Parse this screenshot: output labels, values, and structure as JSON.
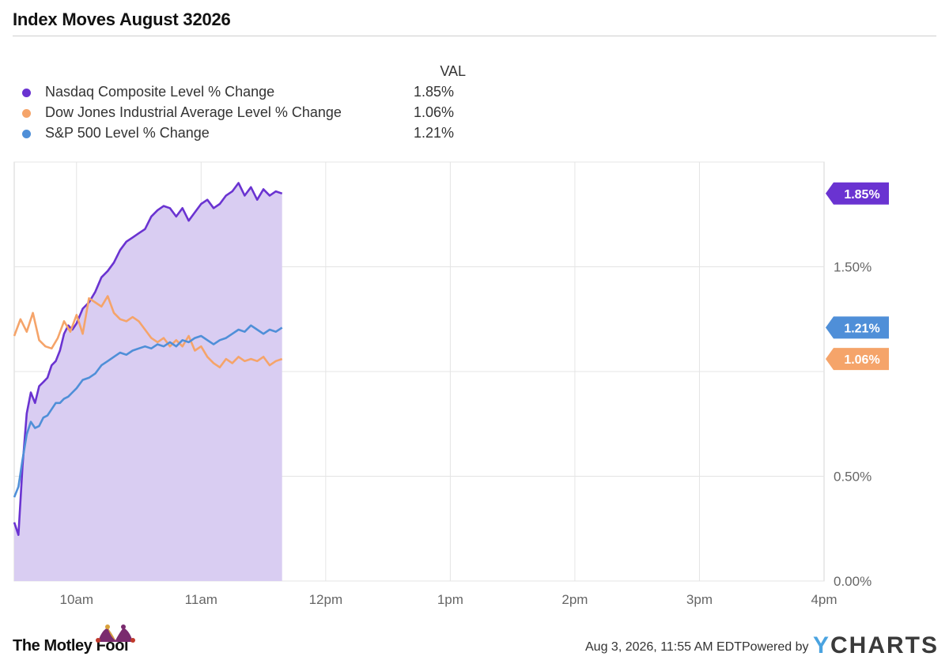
{
  "title": "Index Moves August 32026",
  "legend": {
    "header": "VAL",
    "items": [
      {
        "name": "Nasdaq Composite Level % Change",
        "value": "1.85%",
        "color": "#6a33d1"
      },
      {
        "name": "Dow Jones Industrial Average Level % Change",
        "value": "1.06%",
        "color": "#f5a46a"
      },
      {
        "name": "S&P 500 Level % Change",
        "value": "1.21%",
        "color": "#4f8fd8"
      }
    ]
  },
  "footer": {
    "timestamp": "Aug 3, 2026, 11:55 AM EDT",
    "powered_by": "Powered by",
    "brand": "CHARTS",
    "brand_initial": "Y",
    "publisher": "The Motley Fool"
  },
  "chart_data": {
    "type": "line",
    "x_axis": {
      "ticks": [
        "10am",
        "11am",
        "12pm",
        "1pm",
        "2pm",
        "3pm",
        "4pm"
      ],
      "tick_minutes": [
        30,
        90,
        150,
        210,
        270,
        330,
        390
      ],
      "range_minutes": [
        0,
        390
      ]
    },
    "y_axis": {
      "ticks": [
        "0.00%",
        "0.50%",
        "1.50%"
      ],
      "tick_values": [
        0.0,
        0.5,
        1.5
      ],
      "gridlines": [
        0.0,
        0.5,
        1.0,
        1.5,
        2.0
      ],
      "range": [
        0.0,
        2.0
      ]
    },
    "grid": true,
    "series": [
      {
        "name": "Nasdaq Composite Level % Change",
        "color": "#6a33d1",
        "fill": "#d9cdf2",
        "area": true,
        "last_value_label": "1.85%",
        "x": [
          0,
          2,
          4,
          6,
          8,
          10,
          12,
          14,
          16,
          18,
          20,
          22,
          24,
          26,
          28,
          30,
          33,
          36,
          39,
          42,
          45,
          48,
          51,
          54,
          57,
          60,
          63,
          66,
          69,
          72,
          75,
          78,
          81,
          84,
          87,
          90,
          93,
          96,
          99,
          102,
          105,
          108,
          111,
          114,
          117,
          120,
          123,
          126,
          129
        ],
        "y": [
          0.28,
          0.22,
          0.55,
          0.8,
          0.9,
          0.85,
          0.93,
          0.95,
          0.97,
          1.03,
          1.05,
          1.1,
          1.18,
          1.22,
          1.2,
          1.23,
          1.3,
          1.33,
          1.38,
          1.45,
          1.48,
          1.52,
          1.58,
          1.62,
          1.64,
          1.66,
          1.68,
          1.74,
          1.77,
          1.79,
          1.78,
          1.74,
          1.78,
          1.72,
          1.76,
          1.8,
          1.82,
          1.78,
          1.8,
          1.84,
          1.86,
          1.9,
          1.84,
          1.88,
          1.82,
          1.87,
          1.84,
          1.86,
          1.85
        ]
      },
      {
        "name": "Dow Jones Industrial Average Level % Change",
        "color": "#f5a46a",
        "area": false,
        "last_value_label": "1.06%",
        "x": [
          0,
          3,
          6,
          9,
          12,
          15,
          18,
          21,
          24,
          27,
          30,
          33,
          36,
          39,
          42,
          45,
          48,
          51,
          54,
          57,
          60,
          63,
          66,
          69,
          72,
          75,
          78,
          81,
          84,
          87,
          90,
          93,
          96,
          99,
          102,
          105,
          108,
          111,
          114,
          117,
          120,
          123,
          126,
          129
        ],
        "y": [
          1.17,
          1.25,
          1.19,
          1.28,
          1.15,
          1.12,
          1.11,
          1.16,
          1.24,
          1.19,
          1.27,
          1.18,
          1.35,
          1.33,
          1.31,
          1.36,
          1.28,
          1.25,
          1.24,
          1.26,
          1.24,
          1.2,
          1.16,
          1.14,
          1.16,
          1.12,
          1.15,
          1.12,
          1.17,
          1.1,
          1.12,
          1.07,
          1.04,
          1.02,
          1.06,
          1.04,
          1.07,
          1.05,
          1.06,
          1.05,
          1.07,
          1.03,
          1.05,
          1.06
        ]
      },
      {
        "name": "S&P 500 Level % Change",
        "color": "#4f8fd8",
        "area": false,
        "last_value_label": "1.21%",
        "x": [
          0,
          2,
          4,
          6,
          8,
          10,
          12,
          14,
          16,
          18,
          20,
          22,
          24,
          26,
          28,
          30,
          33,
          36,
          39,
          42,
          45,
          48,
          51,
          54,
          57,
          60,
          63,
          66,
          69,
          72,
          75,
          78,
          81,
          84,
          87,
          90,
          93,
          96,
          99,
          102,
          105,
          108,
          111,
          114,
          117,
          120,
          123,
          126,
          129
        ],
        "y": [
          0.4,
          0.45,
          0.58,
          0.7,
          0.76,
          0.73,
          0.74,
          0.78,
          0.79,
          0.82,
          0.85,
          0.85,
          0.87,
          0.88,
          0.9,
          0.92,
          0.96,
          0.97,
          0.99,
          1.03,
          1.05,
          1.07,
          1.09,
          1.08,
          1.1,
          1.11,
          1.12,
          1.11,
          1.13,
          1.12,
          1.14,
          1.12,
          1.15,
          1.14,
          1.16,
          1.17,
          1.15,
          1.13,
          1.15,
          1.16,
          1.18,
          1.2,
          1.19,
          1.22,
          1.2,
          1.18,
          1.2,
          1.19,
          1.21
        ]
      }
    ]
  }
}
